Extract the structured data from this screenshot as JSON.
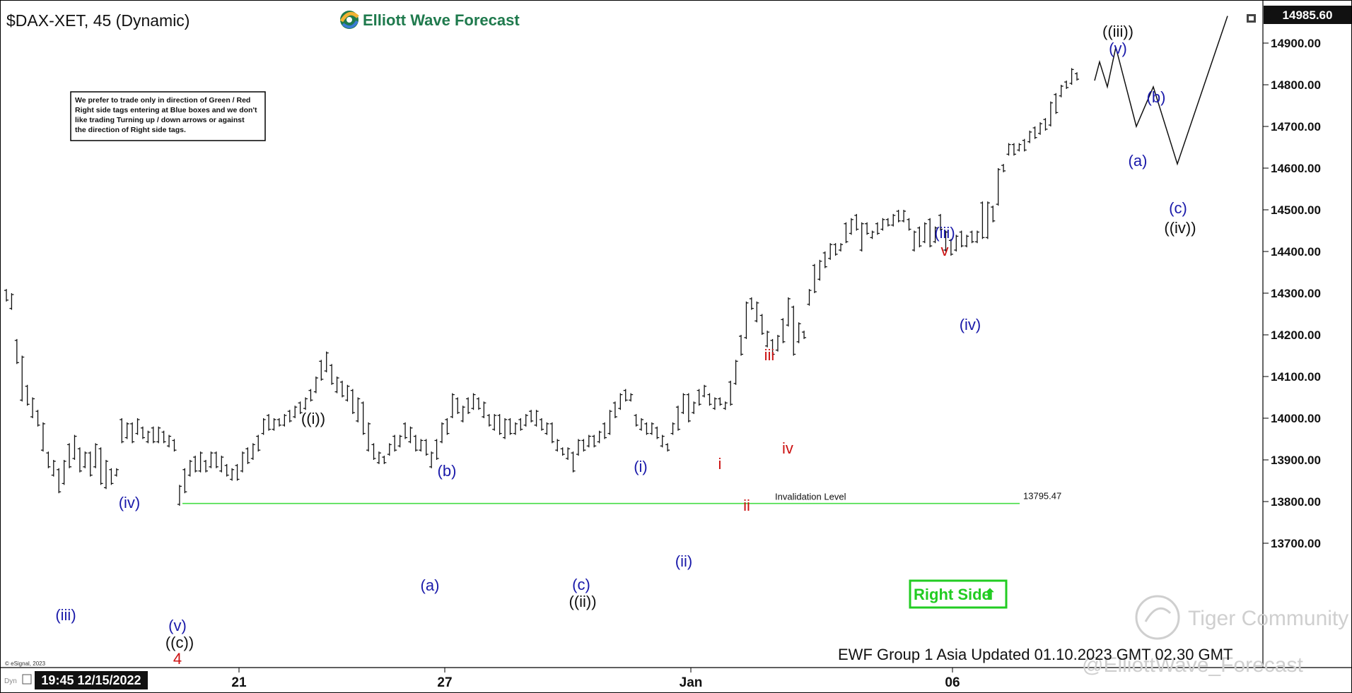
{
  "header": {
    "symbol": "$DAX-XET, 45 (Dynamic)",
    "logo_text": "Elliott Wave Forecast"
  },
  "note_box": {
    "lines": [
      "We prefer to trade only in direction of Green / Red",
      "Right side tags entering at Blue boxes and we don't",
      "like trading Turning up / down arrows or against",
      "the direction of Right side tags."
    ]
  },
  "right_side_tag": {
    "label": "Right Side",
    "arrow": "⬆",
    "color": "#22cc22"
  },
  "invalidation": {
    "label": "Invalidation Level",
    "value_text": "13795.47",
    "value": 13795.47,
    "color": "#44dd44"
  },
  "footer": {
    "update_text": "EWF Group 1 Asia Updated 01.10.2023 GMT 02.30 GMT",
    "esignal_text": "© eSignal, 2023",
    "dyn_text": "Dyn",
    "datetime_text": "19:45 12/15/2022",
    "watermark1": "Tiger Community",
    "watermark2": "@ElliottWave_Forecast"
  },
  "icons": [
    "logo-swirl-icon",
    "window-restore-icon",
    "chart-settings-icon",
    "tiger-logo-icon"
  ],
  "chart_data": {
    "type": "bar",
    "style": "ohlc",
    "title": "$DAX-XET, 45 (Dynamic)",
    "ylim": [
      13680,
      15000
    ],
    "y_ticks": [
      13700,
      13800,
      13900,
      14000,
      14100,
      14200,
      14300,
      14400,
      14500,
      14600,
      14700,
      14800,
      14900
    ],
    "y_tick_labels": [
      "13700.00",
      "13800.00",
      "13900.00",
      "14000.00",
      "14100.00",
      "14200.00",
      "14300.00",
      "14400.00",
      "14500.00",
      "14600.00",
      "14700.00",
      "14800.00",
      "14900.00"
    ],
    "last_price": 14985.6,
    "last_price_text": "14985.60",
    "x_tick_labels": [
      "21",
      "27",
      "Jan",
      "06"
    ],
    "bars_hl": [
      [
        14310,
        14280
      ],
      [
        14300,
        14260
      ],
      [
        14190,
        14130
      ],
      [
        14150,
        14040
      ],
      [
        14080,
        14030
      ],
      [
        14050,
        14000
      ],
      [
        14020,
        13980
      ],
      [
        13990,
        13920
      ],
      [
        13920,
        13880
      ],
      [
        13900,
        13860
      ],
      [
        13880,
        13820
      ],
      [
        13900,
        13840
      ],
      [
        13940,
        13880
      ],
      [
        13960,
        13900
      ],
      [
        13930,
        13870
      ],
      [
        13920,
        13880
      ],
      [
        13920,
        13860
      ],
      [
        13940,
        13880
      ],
      [
        13930,
        13840
      ],
      [
        13900,
        13830
      ],
      [
        13880,
        13840
      ],
      [
        13880,
        13860
      ],
      [
        14000,
        13940
      ],
      [
        13990,
        13950
      ],
      [
        13990,
        13940
      ],
      [
        14000,
        13960
      ],
      [
        13980,
        13950
      ],
      [
        13970,
        13940
      ],
      [
        13980,
        13940
      ],
      [
        13980,
        13940
      ],
      [
        13970,
        13940
      ],
      [
        13960,
        13930
      ],
      [
        13950,
        13920
      ],
      [
        13840,
        13790
      ],
      [
        13880,
        13820
      ],
      [
        13900,
        13860
      ],
      [
        13910,
        13870
      ],
      [
        13920,
        13870
      ],
      [
        13900,
        13870
      ],
      [
        13920,
        13880
      ],
      [
        13920,
        13880
      ],
      [
        13910,
        13870
      ],
      [
        13890,
        13860
      ],
      [
        13880,
        13850
      ],
      [
        13890,
        13850
      ],
      [
        13920,
        13870
      ],
      [
        13930,
        13890
      ],
      [
        13940,
        13900
      ],
      [
        13960,
        13920
      ],
      [
        14000,
        13960
      ],
      [
        14010,
        13970
      ],
      [
        14000,
        13970
      ],
      [
        14000,
        13980
      ],
      [
        14010,
        13980
      ],
      [
        14020,
        13990
      ],
      [
        14030,
        14000
      ],
      [
        14040,
        14010
      ],
      [
        14050,
        14020
      ],
      [
        14070,
        14040
      ],
      [
        14100,
        14060
      ],
      [
        14140,
        14090
      ],
      [
        14160,
        14110
      ],
      [
        14130,
        14080
      ],
      [
        14100,
        14060
      ],
      [
        14090,
        14050
      ],
      [
        14080,
        14040
      ],
      [
        14070,
        14010
      ],
      [
        14050,
        13990
      ],
      [
        14040,
        13960
      ],
      [
        13990,
        13920
      ],
      [
        13940,
        13900
      ],
      [
        13920,
        13890
      ],
      [
        13910,
        13890
      ],
      [
        13940,
        13910
      ],
      [
        13960,
        13920
      ],
      [
        13960,
        13930
      ],
      [
        13990,
        13950
      ],
      [
        13980,
        13940
      ],
      [
        13960,
        13920
      ],
      [
        13950,
        13920
      ],
      [
        13950,
        13910
      ],
      [
        13920,
        13880
      ],
      [
        13950,
        13900
      ],
      [
        13990,
        13940
      ],
      [
        14000,
        13960
      ],
      [
        14060,
        14000
      ],
      [
        14050,
        14010
      ],
      [
        14030,
        13990
      ],
      [
        14050,
        14010
      ],
      [
        14060,
        14020
      ],
      [
        14050,
        14020
      ],
      [
        14040,
        14000
      ],
      [
        14010,
        13980
      ],
      [
        14010,
        13970
      ],
      [
        14010,
        13960
      ],
      [
        14000,
        13950
      ],
      [
        14000,
        13960
      ],
      [
        13990,
        13960
      ],
      [
        14000,
        13970
      ],
      [
        14010,
        13980
      ],
      [
        14020,
        13990
      ],
      [
        14020,
        13980
      ],
      [
        14000,
        13970
      ],
      [
        13990,
        13960
      ],
      [
        13990,
        13940
      ],
      [
        13950,
        13920
      ],
      [
        13930,
        13910
      ],
      [
        13930,
        13900
      ],
      [
        13920,
        13870
      ],
      [
        13950,
        13910
      ],
      [
        13950,
        13920
      ],
      [
        13960,
        13930
      ],
      [
        13960,
        13930
      ],
      [
        13970,
        13940
      ],
      [
        13990,
        13950
      ],
      [
        14020,
        13960
      ],
      [
        14040,
        14000
      ],
      [
        14060,
        14020
      ],
      [
        14070,
        14040
      ],
      [
        14060,
        14040
      ],
      [
        14010,
        13980
      ],
      [
        14000,
        13970
      ],
      [
        13990,
        13960
      ],
      [
        13990,
        13960
      ],
      [
        13980,
        13950
      ],
      [
        13960,
        13930
      ],
      [
        13940,
        13920
      ],
      [
        13990,
        13960
      ],
      [
        14030,
        13970
      ],
      [
        14060,
        14010
      ],
      [
        14060,
        13990
      ],
      [
        14040,
        14010
      ],
      [
        14070,
        14030
      ],
      [
        14080,
        14050
      ],
      [
        14060,
        14030
      ],
      [
        14050,
        14020
      ],
      [
        14050,
        14030
      ],
      [
        14040,
        14020
      ],
      [
        14090,
        14030
      ],
      [
        14140,
        14080
      ],
      [
        14200,
        14150
      ],
      [
        14280,
        14190
      ],
      [
        14290,
        14260
      ],
      [
        14280,
        14230
      ],
      [
        14250,
        14200
      ],
      [
        14210,
        14170
      ],
      [
        14190,
        14150
      ],
      [
        14200,
        14160
      ],
      [
        14240,
        14180
      ],
      [
        14290,
        14220
      ],
      [
        14270,
        14150
      ],
      [
        14230,
        14180
      ],
      [
        14210,
        14190
      ],
      [
        14310,
        14270
      ],
      [
        14370,
        14300
      ],
      [
        14380,
        14330
      ],
      [
        14400,
        14360
      ],
      [
        14420,
        14380
      ],
      [
        14420,
        14390
      ],
      [
        14420,
        14400
      ],
      [
        14470,
        14420
      ],
      [
        14480,
        14440
      ],
      [
        14490,
        14450
      ],
      [
        14470,
        14400
      ],
      [
        14470,
        14440
      ],
      [
        14450,
        14430
      ],
      [
        14470,
        14440
      ],
      [
        14480,
        14450
      ],
      [
        14480,
        14460
      ],
      [
        14490,
        14460
      ],
      [
        14500,
        14470
      ],
      [
        14500,
        14470
      ],
      [
        14480,
        14450
      ],
      [
        14450,
        14400
      ],
      [
        14460,
        14410
      ],
      [
        14470,
        14420
      ],
      [
        14480,
        14410
      ],
      [
        14460,
        14420
      ],
      [
        14490,
        14450
      ],
      [
        14450,
        14400
      ],
      [
        14430,
        14390
      ],
      [
        14440,
        14400
      ],
      [
        14450,
        14410
      ],
      [
        14440,
        14410
      ],
      [
        14450,
        14420
      ],
      [
        14450,
        14420
      ],
      [
        14520,
        14430
      ],
      [
        14520,
        14430
      ],
      [
        14510,
        14470
      ],
      [
        14600,
        14510
      ],
      [
        14610,
        14590
      ],
      [
        14660,
        14630
      ],
      [
        14660,
        14630
      ],
      [
        14660,
        14640
      ],
      [
        14670,
        14640
      ],
      [
        14690,
        14660
      ],
      [
        14700,
        14670
      ],
      [
        14710,
        14680
      ],
      [
        14720,
        14690
      ],
      [
        14760,
        14700
      ],
      [
        14780,
        14730
      ],
      [
        14800,
        14770
      ],
      [
        14810,
        14790
      ],
      [
        14840,
        14800
      ],
      [
        14830,
        14810
      ]
    ],
    "projection_path": [
      [
        14810,
        "start"
      ],
      [
        14855
      ],
      [
        14795
      ],
      [
        14890
      ],
      [
        14700
      ],
      [
        14795
      ],
      [
        14610
      ],
      [
        14965
      ]
    ],
    "labels": [
      {
        "text": "(iii)",
        "color": "#1a1aaa"
      },
      {
        "text": "(iv)",
        "color": "#1a1aaa"
      },
      {
        "text": "(v)",
        "color": "#1a1aaa"
      },
      {
        "text": "((c))",
        "color": "#111111"
      },
      {
        "text": "4",
        "color": "#cc1111"
      },
      {
        "text": "((i))",
        "color": "#111111"
      },
      {
        "text": "(a)",
        "color": "#1a1aaa"
      },
      {
        "text": "(b)",
        "color": "#1a1aaa"
      },
      {
        "text": "(c)",
        "color": "#1a1aaa"
      },
      {
        "text": "((ii))",
        "color": "#111111"
      },
      {
        "text": "(i)",
        "color": "#1a1aaa"
      },
      {
        "text": "(ii)",
        "color": "#1a1aaa"
      },
      {
        "text": "i",
        "color": "#cc1111"
      },
      {
        "text": "ii",
        "color": "#cc1111"
      },
      {
        "text": "iii",
        "color": "#cc1111"
      },
      {
        "text": "iv",
        "color": "#cc1111"
      },
      {
        "text": "(iii)",
        "color": "#1a1aaa"
      },
      {
        "text": "v",
        "color": "#cc1111"
      },
      {
        "text": "(iv)",
        "color": "#1a1aaa"
      },
      {
        "text": "((iii))",
        "color": "#111111"
      },
      {
        "text": "(v)",
        "color": "#1a1aaa"
      },
      {
        "text": "(a)",
        "color": "#1a1aaa"
      },
      {
        "text": "(b)",
        "color": "#1a1aaa"
      },
      {
        "text": "(c)",
        "color": "#1a1aaa"
      },
      {
        "text": "((iv))",
        "color": "#111111"
      }
    ]
  }
}
